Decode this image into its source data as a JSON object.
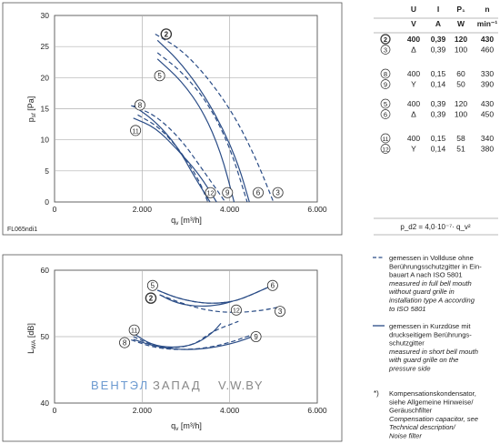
{
  "watermark": {
    "left": "ВЕНТЭЛ",
    "middle": "ЗАПАД",
    "right": "V.W.BY"
  },
  "figure_id": "FL065ndi1",
  "colors": {
    "curve": "#2a4c86",
    "frame": "#555555",
    "grid": "#b0b0b0",
    "text": "#222222",
    "watermark_blue": "#6c9ad0",
    "watermark_gray": "#888888"
  },
  "chart_data": [
    {
      "type": "line",
      "id": "pressure",
      "ylabel": "p_sf [Pa]",
      "xlabel": "q_v [m³/h]",
      "xlim": [
        0,
        6000
      ],
      "ylim": [
        0,
        30
      ],
      "x_ticks": [
        0,
        2000,
        4000,
        6000
      ],
      "x_tick_labels": [
        "0",
        "2.000",
        "4.000",
        "6.000"
      ],
      "y_ticks": [
        0,
        5,
        10,
        15,
        20,
        25,
        30
      ],
      "y_tick_labels": [
        "0",
        "5",
        "10",
        "15",
        "20",
        "25",
        "30"
      ],
      "grid": true,
      "series": [
        {
          "name": "2",
          "style": "solid",
          "bold_label": true,
          "x": [
            2350,
            2800,
            3300,
            3800,
            4200,
            4450
          ],
          "y": [
            26.0,
            23.0,
            18.5,
            12.5,
            6.0,
            0.0
          ],
          "label_at": [
            2550,
            27.0
          ]
        },
        {
          "name": "3",
          "style": "dashed",
          "x": [
            2300,
            2900,
            3500,
            4100,
            4600,
            5000
          ],
          "y": [
            27.0,
            24.5,
            20.0,
            14.0,
            7.0,
            0.0
          ],
          "label_at": [
            5100,
            1.5
          ]
        },
        {
          "name": "5",
          "style": "solid",
          "x": [
            2350,
            2900,
            3400,
            3800,
            4100
          ],
          "y": [
            23.0,
            19.5,
            14.5,
            8.0,
            0.0
          ],
          "label_at": [
            2400,
            20.3
          ]
        },
        {
          "name": "6",
          "style": "dashed",
          "x": [
            2350,
            2900,
            3500,
            4000,
            4400
          ],
          "y": [
            24.0,
            21.0,
            16.0,
            9.0,
            0.0
          ],
          "label_at": [
            4650,
            1.5
          ]
        },
        {
          "name": "8",
          "style": "dashed",
          "x": [
            1750,
            2300,
            2900,
            3400,
            3900
          ],
          "y": [
            15.5,
            14.0,
            10.0,
            5.0,
            0.0
          ],
          "label_at": [
            1950,
            15.6
          ]
        },
        {
          "name": "9",
          "style": "solid",
          "x": [
            1800,
            2300,
            2800,
            3300,
            3700
          ],
          "y": [
            13.5,
            12.0,
            8.5,
            4.5,
            0.0
          ],
          "label_at": [
            3950,
            1.5
          ]
        },
        {
          "name": "11",
          "style": "solid",
          "x": [
            1800,
            2300,
            2800,
            3200,
            3550
          ],
          "y": [
            15.5,
            13.0,
            9.0,
            4.0,
            0.0
          ],
          "label_at": [
            1850,
            11.5
          ]
        },
        {
          "name": "12",
          "style": "dashed",
          "x": [
            1900,
            2400,
            2900,
            3300,
            3500
          ],
          "y": [
            14.0,
            12.0,
            8.0,
            3.5,
            0.0
          ],
          "label_at": [
            3560,
            1.5
          ]
        }
      ]
    },
    {
      "type": "line",
      "id": "sound",
      "ylabel": "L_WA [dB]",
      "xlabel": "q_v [m³/h]",
      "xlim": [
        0,
        6000
      ],
      "ylim": [
        40,
        60
      ],
      "x_ticks": [
        0,
        2000,
        4000,
        6000
      ],
      "x_tick_labels": [
        "0",
        "2.000",
        "4.000",
        "6.000"
      ],
      "y_ticks": [
        40,
        50,
        60
      ],
      "y_tick_labels": [
        "40",
        "50",
        "60"
      ],
      "grid": true,
      "series": [
        {
          "name": "5",
          "style": "solid",
          "x": [
            2350,
            2800,
            3300,
            3700,
            4100,
            4500,
            4900
          ],
          "y": [
            57.0,
            55.8,
            55.1,
            55.0,
            55.3,
            56.3,
            57.5
          ],
          "label_at": [
            2240,
            57.7
          ]
        },
        {
          "name": "6",
          "style": "dashed",
          "x": [
            2350,
            2800,
            3300,
            3700,
            4100,
            4500,
            4900
          ],
          "y": [
            57.0,
            55.8,
            55.1,
            55.0,
            55.3,
            56.3,
            57.5
          ],
          "label_at": [
            4980,
            57.7
          ]
        },
        {
          "name": "2",
          "style": "solid",
          "bold_label": true,
          "x": [
            2400,
            2800,
            3300,
            3800,
            4050
          ],
          "y": [
            56.3,
            55.0,
            54.5,
            54.8,
            55.3
          ],
          "label_at": [
            2200,
            55.8
          ]
        },
        {
          "name": "3",
          "style": "dashed",
          "x": [
            2400,
            3000,
            3600,
            4200,
            4800,
            5150
          ],
          "y": [
            56.3,
            54.8,
            53.8,
            53.6,
            54.0,
            54.5
          ],
          "label_at": [
            5150,
            53.8
          ]
        },
        {
          "name": "11",
          "style": "solid",
          "x": [
            1800,
            2200,
            2700,
            3200,
            3600,
            3800
          ],
          "y": [
            50.5,
            48.8,
            48.3,
            48.8,
            50.5,
            52.0
          ],
          "label_at": [
            1820,
            51.0
          ]
        },
        {
          "name": "12",
          "style": "dashed",
          "x": [
            1800,
            2200,
            2700,
            3200,
            3600,
            4200
          ],
          "y": [
            50.0,
            48.8,
            48.2,
            48.8,
            50.8,
            52.3
          ],
          "label_at": [
            4150,
            54.0
          ]
        },
        {
          "name": "8",
          "style": "dashed",
          "x": [
            1750,
            2300,
            2900,
            3500,
            4100,
            4600
          ],
          "y": [
            49.5,
            48.3,
            48.0,
            48.3,
            49.3,
            50.5
          ],
          "label_at": [
            1600,
            49.1
          ]
        },
        {
          "name": "9",
          "style": "solid",
          "x": [
            1800,
            2300,
            2900,
            3500,
            4100,
            4600
          ],
          "y": [
            49.6,
            48.5,
            48.0,
            48.2,
            49.0,
            50.2
          ],
          "label_at": [
            4600,
            50.0
          ]
        }
      ]
    }
  ],
  "spec_table": {
    "headers": [
      "U",
      "I",
      "P₁",
      "n"
    ],
    "units": [
      "V",
      "A",
      "W",
      "min⁻¹"
    ],
    "groups": [
      {
        "rows": [
          {
            "id": "2",
            "bold": true,
            "U": "400",
            "conn": "",
            "I": "0,39",
            "P": "120",
            "n": "430"
          },
          {
            "id": "3",
            "bold": false,
            "U": "",
            "conn": "Δ",
            "I": "0,39",
            "P": "100",
            "n": "460"
          }
        ]
      },
      {
        "rows": [
          {
            "id": "8",
            "bold": false,
            "U": "400",
            "conn": "",
            "I": "0,15",
            "P": "60",
            "n": "330"
          },
          {
            "id": "9",
            "bold": false,
            "U": "",
            "conn": "Y",
            "I": "0,14",
            "P": "50",
            "n": "390"
          }
        ]
      },
      {
        "rows": [
          {
            "id": "5",
            "bold": false,
            "U": "400",
            "conn": "",
            "I": "0,39",
            "P": "120",
            "n": "430"
          },
          {
            "id": "6",
            "bold": false,
            "U": "",
            "conn": "Δ",
            "I": "0,39",
            "P": "100",
            "n": "450"
          }
        ]
      },
      {
        "rows": [
          {
            "id": "11",
            "bold": false,
            "U": "400",
            "conn": "",
            "I": "0,15",
            "P": "58",
            "n": "340"
          },
          {
            "id": "12",
            "bold": false,
            "U": "",
            "conn": "Y",
            "I": "0,14",
            "P": "51",
            "n": "380"
          }
        ]
      }
    ],
    "formula": "p_d2 = 4,0·10⁻⁷· q_v²"
  },
  "legend_notes": [
    {
      "style": "dashed",
      "lines": [
        "gemessen in Vollduse ohne",
        "Berührungsschutzgitter in Ein-",
        "bauart A nach ISO 5801"
      ],
      "italic_lines": [
        "measured in full bell mouth",
        "without guard grille in",
        "installation type A according",
        "to ISO 5801"
      ]
    },
    {
      "style": "solid",
      "lines": [
        "gemessen in Kurzdüse mit",
        "druckseitigem Berührungs-",
        "schutzgitter"
      ],
      "italic_lines": [
        "measured in short bell mouth",
        "with guard grille on the",
        "pressure side"
      ]
    },
    {
      "style": "marker",
      "marker": "*)",
      "lines": [
        "Kompensationskondensator,",
        "siehe Allgemeine Hinweise/",
        "Geräuschfilter"
      ],
      "italic_lines": [
        "Compensation capacitor, see",
        "Technical description/",
        "Noise filter"
      ]
    }
  ]
}
